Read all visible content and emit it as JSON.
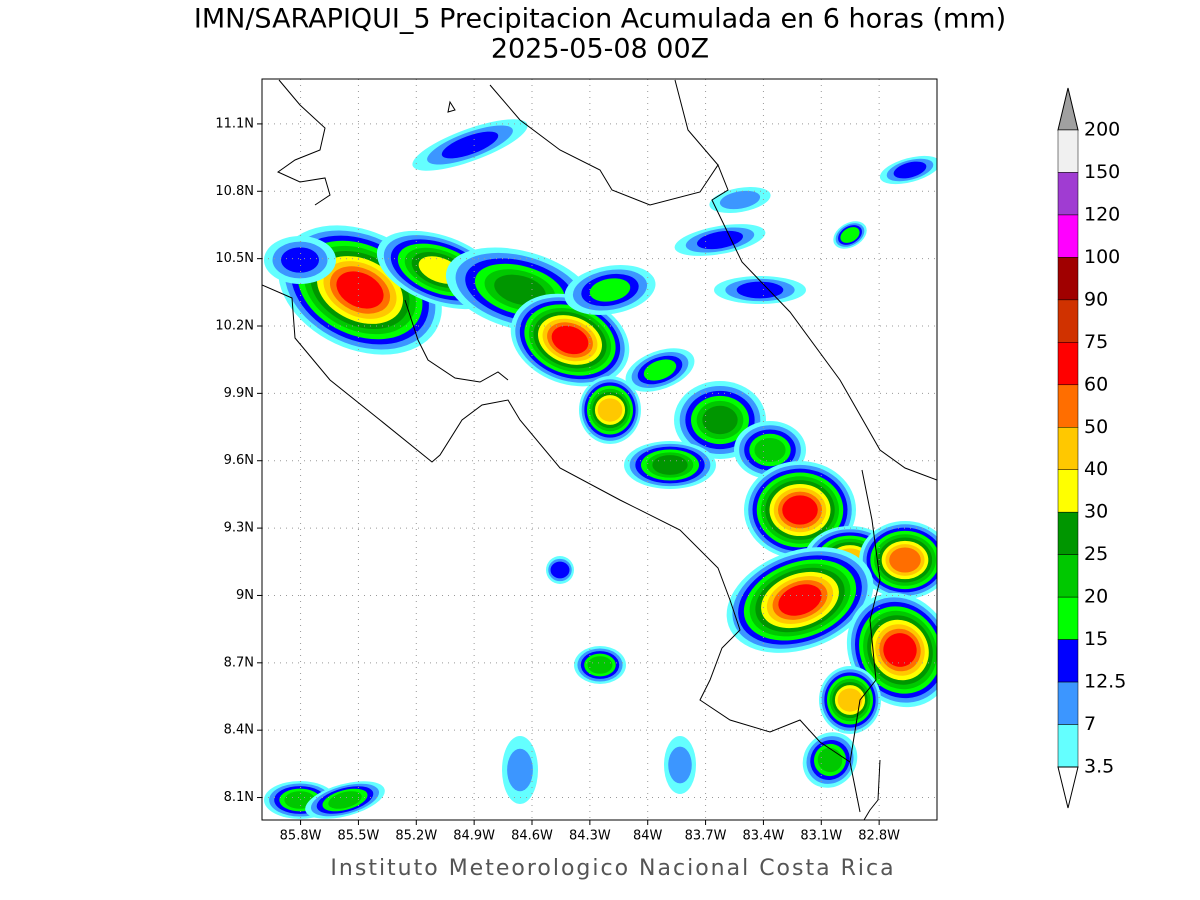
{
  "header": {
    "title": "IMN/SARAPIQUI_5 Precipitacion Acumulada en 6 horas (mm)",
    "subtitle": "2025-05-08 00Z"
  },
  "map": {
    "xlim": [
      -86.0,
      -82.5
    ],
    "ylim": [
      8.0,
      11.3
    ],
    "xticks": [
      {
        "value": -85.8,
        "label": "85.8W"
      },
      {
        "value": -85.5,
        "label": "85.5W"
      },
      {
        "value": -85.2,
        "label": "85.2W"
      },
      {
        "value": -84.9,
        "label": "84.9W"
      },
      {
        "value": -84.6,
        "label": "84.6W"
      },
      {
        "value": -84.3,
        "label": "84.3W"
      },
      {
        "value": -84.0,
        "label": "84W"
      },
      {
        "value": -83.7,
        "label": "83.7W"
      },
      {
        "value": -83.4,
        "label": "83.4W"
      },
      {
        "value": -83.1,
        "label": "83.1W"
      },
      {
        "value": -82.8,
        "label": "82.8W"
      }
    ],
    "yticks": [
      {
        "value": 11.1,
        "label": "11.1N"
      },
      {
        "value": 10.8,
        "label": "10.8N"
      },
      {
        "value": 10.5,
        "label": "10.5N"
      },
      {
        "value": 10.2,
        "label": "10.2N"
      },
      {
        "value": 9.9,
        "label": "9.9N"
      },
      {
        "value": 9.6,
        "label": "9.6N"
      },
      {
        "value": 9.3,
        "label": "9.3N"
      },
      {
        "value": 9.0,
        "label": "9N"
      },
      {
        "value": 8.7,
        "label": "8.7N"
      },
      {
        "value": 8.4,
        "label": "8.4N"
      },
      {
        "value": 8.1,
        "label": "8.1N"
      }
    ],
    "grid": true
  },
  "legend": {
    "levels": [
      "200",
      "150",
      "120",
      "100",
      "90",
      "75",
      "60",
      "50",
      "40",
      "30",
      "25",
      "20",
      "15",
      "12.5",
      "7",
      "3.5"
    ],
    "colors": [
      "#a0a0a0",
      "#f0f0f0",
      "#a03cd2",
      "#ff00ff",
      "#a00000",
      "#d03200",
      "#ff0000",
      "#ff6e00",
      "#ffc800",
      "#ffff00",
      "#009600",
      "#00c800",
      "#00ff00",
      "#0000ff",
      "#3c96ff",
      "#64ffff",
      "#ffffff"
    ]
  },
  "footer": "Instituto Meteorologico Nacional Costa Rica"
}
